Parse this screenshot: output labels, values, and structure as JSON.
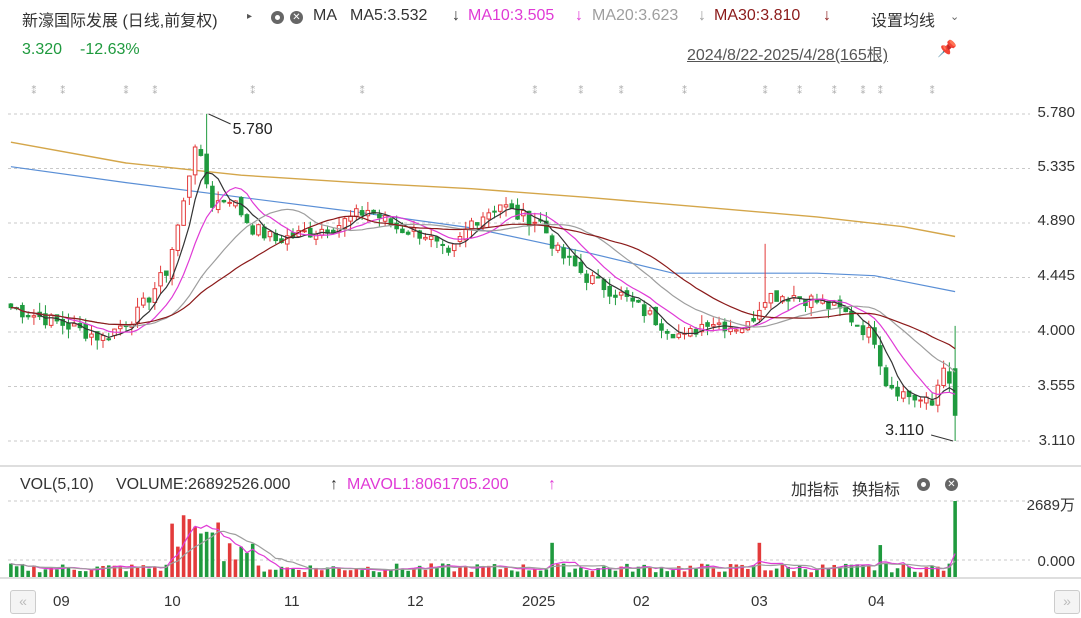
{
  "header": {
    "title": "新濠国际发展 (日线,前复权)",
    "ma_label": "MA",
    "ma5": "MA5:3.532",
    "ma10": "MA10:3.505",
    "ma20": "MA20:3.623",
    "ma30": "MA30:3.810",
    "arrow_down": "↓",
    "arrow_up": "↑",
    "settings": "设置均线",
    "price": "3.320",
    "change": "-12.63%",
    "range": "2024/8/22-2025/4/28(165根)"
  },
  "volume_header": {
    "label": "VOL(5,10)",
    "volume": "VOLUME:26892526.000",
    "mavol": "MAVOL1:8061705.200",
    "add_indicator": "加指标",
    "switch_indicator": "换指标"
  },
  "colors": {
    "up": "#e33b3b",
    "down": "#1f9a3e",
    "ma5": "#333333",
    "ma10": "#e03ad6",
    "ma20": "#9e9e9e",
    "ma30": "#8b1a1a",
    "ma_long1": "#d4a64a",
    "ma_long2": "#5a8fd6"
  },
  "chart_data": {
    "type": "candlestick",
    "date_range": [
      "2024-08-22",
      "2025-04-28"
    ],
    "bars": 165,
    "price_axis_ticks": [
      5.78,
      5.335,
      4.89,
      4.445,
      4.0,
      3.555,
      3.11
    ],
    "price_axis_labels": [
      "5.780",
      "5.335",
      "4.890",
      "4.445",
      "4.000",
      "3.555",
      "3.110"
    ],
    "volume_axis_labels": [
      "2689万",
      "0.000"
    ],
    "x_axis_labels": [
      "09",
      "10",
      "11",
      "12",
      "2025",
      "02",
      "03",
      "04"
    ],
    "annotations": {
      "high": "5.780",
      "low": "3.110"
    },
    "close_anchors": [
      [
        0,
        4.2
      ],
      [
        10,
        4.05
      ],
      [
        16,
        3.95
      ],
      [
        22,
        4.15
      ],
      [
        27,
        4.5
      ],
      [
        30,
        5.05
      ],
      [
        32,
        5.55
      ],
      [
        35,
        5.05
      ],
      [
        38,
        5.1
      ],
      [
        42,
        4.85
      ],
      [
        46,
        4.75
      ],
      [
        52,
        4.82
      ],
      [
        57,
        4.88
      ],
      [
        62,
        5.0
      ],
      [
        67,
        4.85
      ],
      [
        72,
        4.8
      ],
      [
        76,
        4.6
      ],
      [
        80,
        4.9
      ],
      [
        85,
        5.05
      ],
      [
        88,
        4.95
      ],
      [
        92,
        4.9
      ],
      [
        95,
        4.65
      ],
      [
        100,
        4.45
      ],
      [
        106,
        4.3
      ],
      [
        112,
        4.1
      ],
      [
        117,
        3.95
      ],
      [
        121,
        4.1
      ],
      [
        125,
        4.05
      ],
      [
        128,
        4.05
      ],
      [
        131,
        4.3
      ],
      [
        136,
        4.3
      ],
      [
        140,
        4.25
      ],
      [
        145,
        4.15
      ],
      [
        150,
        3.95
      ],
      [
        152,
        3.6
      ],
      [
        155,
        3.5
      ],
      [
        160,
        3.4
      ],
      [
        162,
        3.75
      ],
      [
        164,
        3.32
      ]
    ],
    "ma_values_latest": {
      "MA5": 3.532,
      "MA10": 3.505,
      "MA20": 3.623,
      "MA30": 3.81
    },
    "volume_latest": 26892526.0,
    "mavol1_latest": 8061705.2
  }
}
